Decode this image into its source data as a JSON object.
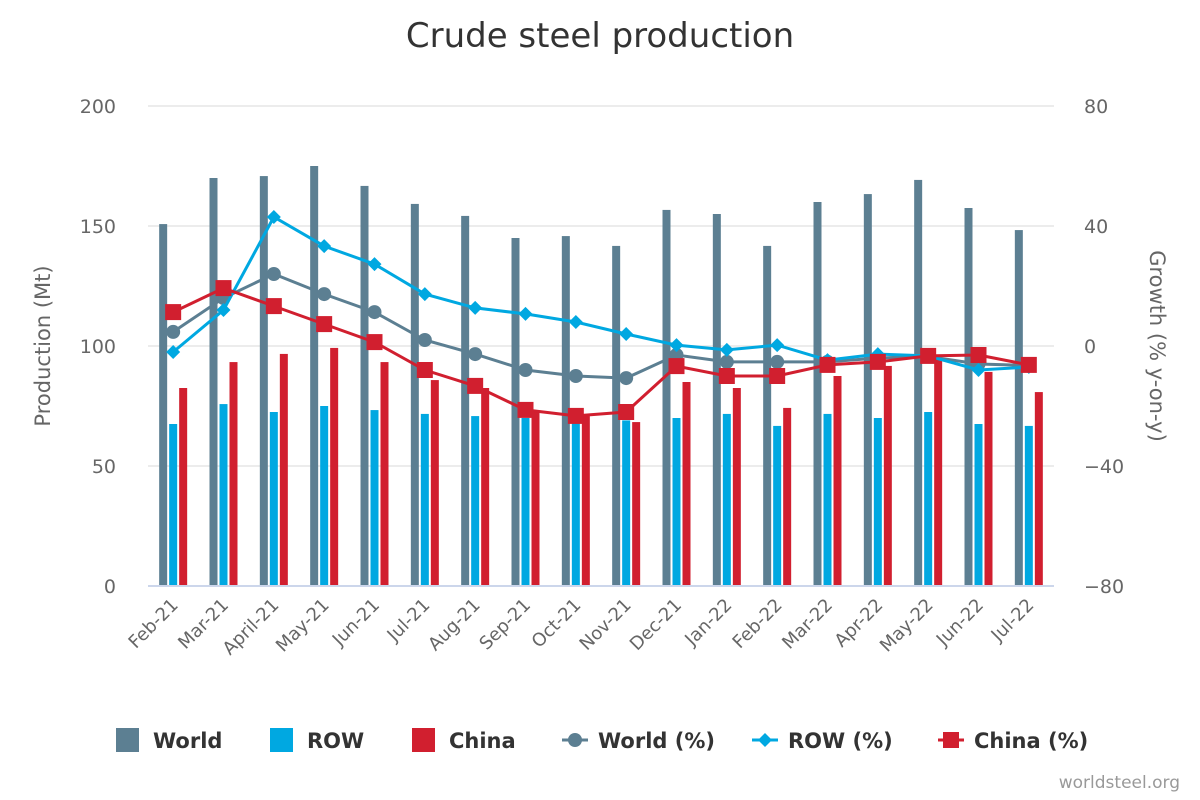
{
  "chart_data": {
    "type": "bar",
    "title": "Crude steel production",
    "xlabel": "",
    "ylabel": "Production (Mt)",
    "ylabel_right": "Growth (% y-on-y)",
    "ylim": [
      0,
      200
    ],
    "ylim_right": [
      -80,
      80
    ],
    "yticks": [
      "0",
      "50",
      "100",
      "150",
      "200"
    ],
    "yticks_right": [
      "−80",
      "−40",
      "0",
      "40",
      "80"
    ],
    "grid": true,
    "legend_position": "bottom",
    "categories": [
      "Feb-21",
      "Mar-21",
      "April-21",
      "May-21",
      "Jun-21",
      "Jul-21",
      "Aug-21",
      "Sep-21",
      "Oct-21",
      "Nov-21",
      "Dec-21",
      "Jan-22",
      "Feb-22",
      "Mar-22",
      "Apr-22",
      "May-22",
      "Jun-22",
      "Jul-22"
    ],
    "series": [
      {
        "name": "World",
        "type": "bar",
        "axis": "left",
        "color": "#5c7f92",
        "values": [
          150.8,
          170.0,
          170.8,
          175.0,
          166.7,
          159.2,
          154.2,
          145.0,
          145.8,
          141.7,
          156.7,
          155.0,
          141.7,
          160.0,
          163.3,
          169.2,
          157.5,
          148.3
        ]
      },
      {
        "name": "ROW",
        "type": "bar",
        "axis": "left",
        "color": "#00a8e1",
        "values": [
          67.5,
          75.8,
          72.5,
          75.0,
          73.3,
          71.7,
          70.8,
          70.0,
          68.0,
          69.0,
          70.0,
          71.7,
          66.7,
          71.7,
          70.0,
          72.5,
          67.5,
          66.7
        ]
      },
      {
        "name": "China",
        "type": "bar",
        "axis": "left",
        "color": "#d11f2f",
        "values": [
          82.5,
          93.3,
          96.7,
          99.2,
          93.3,
          85.8,
          82.5,
          73.3,
          70.8,
          68.3,
          85.0,
          82.5,
          74.2,
          87.5,
          91.7,
          95.4,
          89.2,
          80.8
        ]
      },
      {
        "name": "World (%)",
        "type": "line",
        "axis": "right",
        "marker": "circle",
        "color": "#5c7f92",
        "values": [
          4.7,
          16.0,
          24.0,
          17.3,
          11.3,
          2.0,
          -2.7,
          -8.0,
          -10.0,
          -10.7,
          -3.0,
          -5.3,
          -5.3,
          -5.3,
          -4.0,
          -3.5,
          -6.0,
          -6.5
        ]
      },
      {
        "name": "ROW (%)",
        "type": "line",
        "axis": "right",
        "marker": "diamond",
        "color": "#00a8e1",
        "values": [
          -2.0,
          12.0,
          43.0,
          33.3,
          27.3,
          17.3,
          12.7,
          10.7,
          8.0,
          4.0,
          0.3,
          -1.3,
          0.3,
          -4.7,
          -2.7,
          -3.3,
          -8.0,
          -7.0
        ]
      },
      {
        "name": "China (%)",
        "type": "line",
        "axis": "right",
        "marker": "square",
        "color": "#d11f2f",
        "values": [
          11.3,
          19.3,
          13.3,
          7.3,
          1.3,
          -8.0,
          -13.3,
          -21.3,
          -23.3,
          -22.0,
          -6.7,
          -10.0,
          -10.0,
          -6.3,
          -5.3,
          -3.3,
          -3.0,
          -6.3
        ]
      }
    ],
    "credit": "worldsteel.org"
  }
}
